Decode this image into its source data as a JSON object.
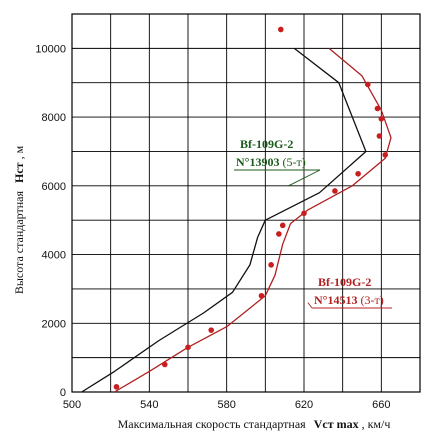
{
  "chart_data": {
    "type": "line",
    "title": "",
    "xlabel": {
      "prefix": "Максимальная скорость стандартная",
      "symbol": "Vст max",
      "unit": ", км/ч"
    },
    "ylabel": {
      "prefix": "Высота стандартная",
      "symbol": "Hст",
      "unit": ", м"
    },
    "xlim": [
      500,
      680
    ],
    "ylim": [
      0,
      11000
    ],
    "x_ticks": [
      500,
      540,
      580,
      620,
      660
    ],
    "x_tick_labels": [
      "500",
      "540",
      "580",
      "620",
      "660"
    ],
    "y_ticks": [
      0,
      2000,
      4000,
      6000,
      8000,
      10000
    ],
    "y_tick_labels": [
      "0",
      "2000",
      "4000",
      "6000",
      "8000",
      "10000"
    ],
    "x_grid_step": 20,
    "y_grid_step": 1000,
    "grid": true,
    "legend": "none",
    "series": [
      {
        "name": "Bf-109G-2 N°13903 (5-т)",
        "color": "#111111",
        "x": [
          505,
          522,
          545,
          568,
          583,
          592,
          596,
          600,
          628,
          652,
          638,
          615
        ],
        "y": [
          0,
          600,
          1500,
          2300,
          2900,
          3700,
          4500,
          5000,
          5800,
          7000,
          9000,
          10000
        ]
      },
      {
        "name": "Bf-109G-2 N°14513 (3-т)",
        "color": "#b02020",
        "x": [
          522,
          540,
          560,
          580,
          600,
          605,
          609,
          613,
          622,
          645,
          662,
          665,
          660,
          650,
          633
        ],
        "y": [
          0,
          600,
          1300,
          1900,
          2800,
          3400,
          4300,
          4900,
          5300,
          6000,
          6800,
          7400,
          8200,
          9200,
          10000
        ]
      }
    ],
    "points": {
      "x": [
        523,
        548,
        560,
        572,
        598,
        603,
        607,
        609,
        620,
        636,
        648,
        662,
        659,
        660,
        658,
        653,
        608
      ],
      "y": [
        150,
        800,
        1300,
        1800,
        2800,
        3700,
        4600,
        4850,
        5200,
        5850,
        6350,
        6900,
        7450,
        7950,
        8250,
        8950,
        10550
      ]
    },
    "annotations": [
      {
        "model": "Bf-109G-2",
        "serial": "N°13903",
        "note": "(5-т)",
        "color": "#1a5a1a",
        "series_index": 0,
        "at_x": 612,
        "at_y": 6000
      },
      {
        "model": "Bf-109G-2",
        "serial": "N°14513",
        "note": "(3-т)",
        "color": "#b02020",
        "series_index": 1,
        "at_x": 622,
        "at_y": 2600
      }
    ]
  }
}
